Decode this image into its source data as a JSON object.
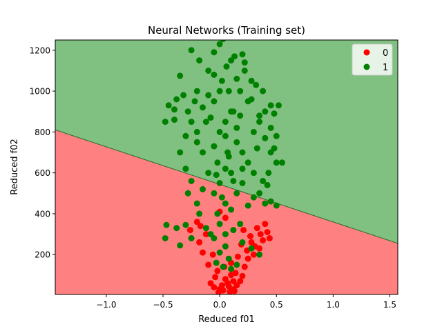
{
  "chart_data": {
    "type": "scatter",
    "title": "Neural Networks (Training set)",
    "xlabel": "Reduced f01",
    "ylabel": "Reduced f02",
    "xlim": [
      -1.45,
      1.57
    ],
    "ylim": [
      5,
      1250
    ],
    "xticks": [
      -1.0,
      -0.5,
      0.0,
      0.5,
      1.0,
      1.5
    ],
    "xtick_labels": [
      "−1.0",
      "−0.5",
      "0.0",
      "0.5",
      "1.0",
      "1.5"
    ],
    "yticks": [
      200,
      400,
      600,
      800,
      1000,
      1200
    ],
    "ytick_labels": [
      "200",
      "400",
      "600",
      "800",
      "1000",
      "1200"
    ],
    "grid": false,
    "legend_position": "top-right",
    "decision_boundary": {
      "points": [
        [
          -1.45,
          810
        ],
        [
          1.57,
          255
        ]
      ],
      "regions": [
        {
          "class": "0",
          "side": "below",
          "color": "#ff8080"
        },
        {
          "class": "1",
          "side": "above",
          "color": "#80c080"
        }
      ]
    },
    "series": [
      {
        "name": "0",
        "color": "#ff0000",
        "points": [
          [
            0.0,
            30
          ],
          [
            0.03,
            25
          ],
          [
            -0.05,
            40
          ],
          [
            0.08,
            45
          ],
          [
            0.12,
            30
          ],
          [
            0.15,
            50
          ],
          [
            0.18,
            70
          ],
          [
            -0.08,
            60
          ],
          [
            0.05,
            80
          ],
          [
            0.1,
            100
          ],
          [
            -0.02,
            120
          ],
          [
            0.2,
            95
          ],
          [
            0.22,
            140
          ],
          [
            -0.1,
            150
          ],
          [
            0.25,
            180
          ],
          [
            0.3,
            200
          ],
          [
            0.35,
            230
          ],
          [
            0.28,
            260
          ],
          [
            0.38,
            270
          ],
          [
            -0.15,
            210
          ],
          [
            -0.18,
            260
          ],
          [
            -0.12,
            300
          ],
          [
            -0.25,
            280
          ],
          [
            -0.17,
            340
          ],
          [
            0.33,
            330
          ],
          [
            0.4,
            350
          ],
          [
            0.42,
            310
          ],
          [
            0.05,
            380
          ],
          [
            0.0,
            410
          ],
          [
            0.02,
            50
          ],
          [
            0.07,
            60
          ],
          [
            -0.04,
            90
          ],
          [
            0.14,
            110
          ],
          [
            0.1,
            160
          ],
          [
            0.16,
            190
          ],
          [
            -0.06,
            200
          ],
          [
            0.24,
            220
          ],
          [
            0.31,
            240
          ],
          [
            0.27,
            290
          ],
          [
            0.36,
            300
          ],
          [
            0.12,
            70
          ],
          [
            -0.01,
            15
          ],
          [
            0.09,
            18
          ],
          [
            0.13,
            22
          ],
          [
            0.04,
            140
          ],
          [
            0.19,
            250
          ],
          [
            0.21,
            320
          ],
          [
            -0.2,
            360
          ],
          [
            -0.26,
            320
          ],
          [
            0.44,
            280
          ]
        ]
      },
      {
        "name": "1",
        "color": "#008000",
        "points": [
          [
            0.0,
            800
          ],
          [
            0.05,
            850
          ],
          [
            0.1,
            900
          ],
          [
            -0.05,
            950
          ],
          [
            0.08,
            1000
          ],
          [
            0.02,
            1050
          ],
          [
            -0.1,
            1100
          ],
          [
            0.15,
            750
          ],
          [
            0.2,
            700
          ],
          [
            0.25,
            650
          ],
          [
            -0.15,
            700
          ],
          [
            -0.2,
            750
          ],
          [
            0.3,
            800
          ],
          [
            0.35,
            850
          ],
          [
            -0.25,
            850
          ],
          [
            0.4,
            900
          ],
          [
            0.45,
            700
          ],
          [
            0.5,
            650
          ],
          [
            0.55,
            650
          ],
          [
            0.1,
            600
          ],
          [
            0.0,
            550
          ],
          [
            -0.05,
            500
          ],
          [
            0.05,
            450
          ],
          [
            0.15,
            500
          ],
          [
            0.2,
            550
          ],
          [
            0.3,
            600
          ],
          [
            0.35,
            500
          ],
          [
            0.4,
            450
          ],
          [
            0.5,
            440
          ],
          [
            -0.1,
            600
          ],
          [
            -0.2,
            450
          ],
          [
            -0.3,
            620
          ],
          [
            -0.4,
            860
          ],
          [
            -0.45,
            930
          ],
          [
            -0.48,
            850
          ],
          [
            -0.35,
            1075
          ],
          [
            -0.38,
            960
          ],
          [
            -0.4,
            910
          ],
          [
            0.45,
            930
          ],
          [
            0.52,
            930
          ],
          [
            0.48,
            890
          ],
          [
            0.5,
            780
          ],
          [
            0.1,
            1150
          ],
          [
            0.2,
            1180
          ],
          [
            0.0,
            1230
          ],
          [
            -0.25,
            1200
          ],
          [
            0.03,
            1255
          ],
          [
            -0.05,
            1190
          ],
          [
            0.13,
            1170
          ],
          [
            0.22,
            1100
          ],
          [
            0.28,
            1050
          ],
          [
            -0.2,
            1000
          ],
          [
            -0.22,
            950
          ],
          [
            -0.12,
            850
          ],
          [
            0.25,
            950
          ],
          [
            0.18,
            1000
          ],
          [
            0.12,
            900
          ],
          [
            -0.02,
            650
          ],
          [
            0.07,
            700
          ],
          [
            0.15,
            820
          ],
          [
            -0.08,
            870
          ],
          [
            0.33,
            720
          ],
          [
            -0.3,
            780
          ],
          [
            0.38,
            560
          ],
          [
            -0.25,
            560
          ],
          [
            0.05,
            620
          ],
          [
            0.02,
            480
          ],
          [
            -0.15,
            520
          ],
          [
            0.45,
            460
          ],
          [
            0.1,
            420
          ],
          [
            -0.02,
            400
          ],
          [
            0.0,
            350
          ],
          [
            0.05,
            300
          ],
          [
            -0.05,
            280
          ],
          [
            0.05,
            240
          ],
          [
            0.0,
            210
          ],
          [
            0.08,
            180
          ],
          [
            -0.03,
            160
          ],
          [
            0.03,
            140
          ],
          [
            0.1,
            130
          ],
          [
            -0.47,
            345
          ],
          [
            -0.48,
            280
          ],
          [
            -0.38,
            330
          ],
          [
            -0.3,
            345
          ],
          [
            -0.35,
            245
          ],
          [
            -0.25,
            280
          ],
          [
            -0.08,
            300
          ],
          [
            0.12,
            320
          ],
          [
            0.18,
            350
          ],
          [
            0.28,
            230
          ],
          [
            0.35,
            200
          ],
          [
            -0.18,
            400
          ],
          [
            -0.12,
            330
          ],
          [
            0.2,
            260
          ],
          [
            0.15,
            150
          ],
          [
            0.25,
            440
          ],
          [
            0.3,
            480
          ],
          [
            -0.28,
            500
          ],
          [
            0.42,
            540
          ],
          [
            0.0,
            1000
          ],
          [
            0.05,
            780
          ],
          [
            -0.05,
            730
          ],
          [
            0.08,
            680
          ],
          [
            -0.03,
            590
          ],
          [
            0.12,
            560
          ],
          [
            0.2,
            620
          ],
          [
            0.18,
            880
          ],
          [
            -0.15,
            920
          ],
          [
            0.28,
            960
          ],
          [
            0.35,
            880
          ],
          [
            -0.1,
            980
          ],
          [
            0.15,
            1060
          ],
          [
            -0.05,
            1080
          ],
          [
            0.22,
            1140
          ],
          [
            0.06,
            1120
          ],
          [
            -0.18,
            1150
          ],
          [
            0.4,
            770
          ],
          [
            0.48,
            720
          ],
          [
            0.43,
            600
          ],
          [
            -0.35,
            700
          ],
          [
            -0.2,
            800
          ],
          [
            0.32,
            1030
          ],
          [
            0.38,
            1000
          ],
          [
            0.45,
            820
          ],
          [
            -0.28,
            900
          ],
          [
            -0.32,
            980
          ]
        ]
      }
    ]
  }
}
